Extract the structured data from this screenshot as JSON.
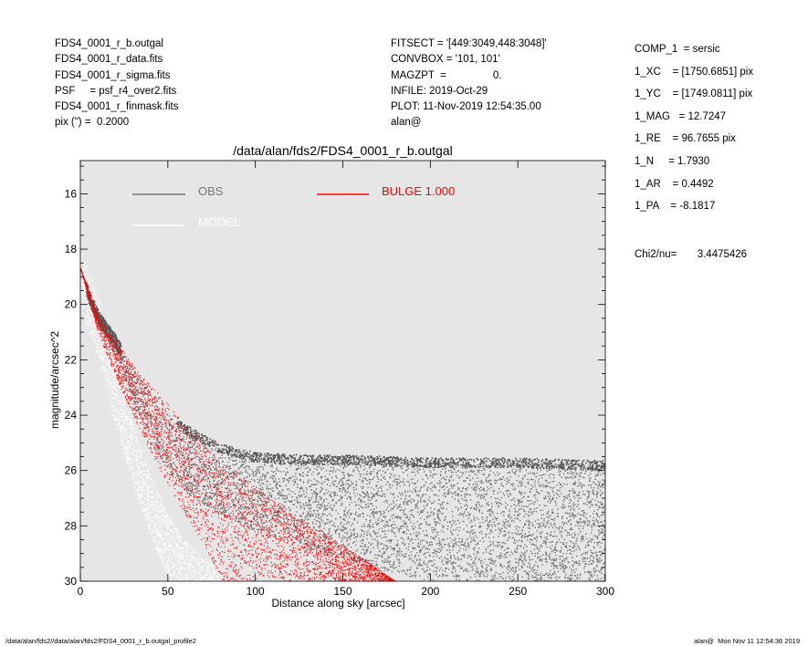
{
  "header_left": [
    "FDS4_0001_r_b.outgal",
    "FDS4_0001_r_data.fits",
    "FDS4_0001_r_sigma.fits",
    "PSF     = psf_r4_over2.fits",
    "FDS4_0001_r_finmask.fits",
    "pix (\") =  0.2000"
  ],
  "header_mid": [
    "FITSECT = '[449:3049,448:3048]'",
    "CONVBOX = '101, 101'",
    "MAGZPT  =                0.",
    "INFILE: 2019-Oct-29",
    "PLOT: 11-Nov-2019 12:54:35.00",
    "alan@"
  ],
  "params": [
    "COMP_1  = sersic",
    "1_XC    = [1750.6851] pix",
    "1_YC    = [1749.0811] pix",
    "1_MAG   = 12.7247",
    "1_RE    = 96.7655 pix",
    "1_N     = 1.7930",
    "1_AR    = 0.4492",
    "1_PA    = -8.1817"
  ],
  "chi2": "Chi2/nu=       3.4475426",
  "footer_left": "/data/alan/fds2//data/alan/fds2/FDS4_0001_r_b.outgal_profile2",
  "footer_right": "alan@  Mon Nov 11 12:54:36 2019",
  "colors": {
    "background": "#e6e6e6",
    "obs": "#777777",
    "model": "#ffffff",
    "bulge": "#ff0000"
  },
  "chart_data": {
    "type": "scatter",
    "title": "/data/alan/fds2/FDS4_0001_r_b.outgal",
    "xlabel": "Distance along sky [arcsec]",
    "ylabel": "magnitude/arcsec^2",
    "xlim": [
      0,
      300
    ],
    "ylim": [
      30,
      14.8
    ],
    "y_inverted": true,
    "xticks": [
      0,
      50,
      100,
      150,
      200,
      250,
      300
    ],
    "yticks": [
      16,
      18,
      20,
      22,
      24,
      26,
      28,
      30
    ],
    "grid": false,
    "legend": [
      {
        "label": "OBS",
        "color": "#777777"
      },
      {
        "label": "MODEL",
        "color": "#ffffff"
      },
      {
        "label": "BULGE  1.000",
        "color": "#ff0000"
      }
    ],
    "series": [
      {
        "name": "OBS",
        "x": [
          0,
          5,
          10,
          20,
          30,
          40,
          50,
          60,
          80,
          100,
          130,
          160,
          200,
          250,
          300
        ],
        "y": [
          18.7,
          19.6,
          20.3,
          21.2,
          22.3,
          23.2,
          23.9,
          24.5,
          25.2,
          25.5,
          25.6,
          25.6,
          25.7,
          25.7,
          25.8
        ],
        "y_scatter_floor": [
          18.7,
          19.8,
          20.6,
          21.9,
          23.5,
          25.0,
          26.0,
          26.8,
          27.6,
          28.2,
          28.8,
          29.4,
          30.0,
          30.0,
          30.0
        ]
      },
      {
        "name": "MODEL",
        "x": [
          0,
          10,
          20,
          30,
          40,
          50,
          60,
          70,
          80
        ],
        "y": [
          18.7,
          20.3,
          22.8,
          25.0,
          26.8,
          28.3,
          29.2,
          29.8,
          30.0
        ]
      },
      {
        "name": "BULGE  1.000",
        "x": [
          0,
          10,
          20,
          30,
          40,
          50,
          60,
          70,
          80,
          100,
          120,
          140,
          160,
          180
        ],
        "y_bright": [
          18.7,
          20.4,
          21.3,
          22.2,
          22.9,
          23.6,
          24.4,
          25.0,
          25.6,
          26.6,
          27.5,
          28.3,
          29.1,
          30.0
        ],
        "y_faint": [
          18.7,
          21.0,
          22.6,
          24.0,
          25.3,
          26.5,
          27.6,
          28.6,
          30.0,
          30.0,
          30.0,
          30.0,
          30.0,
          30.0
        ]
      }
    ]
  }
}
